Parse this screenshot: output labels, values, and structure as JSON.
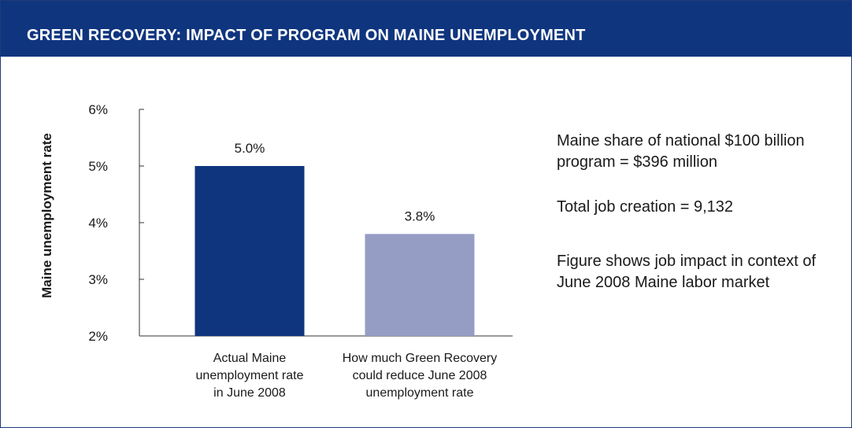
{
  "header": {
    "title": "GREEN RECOVERY: IMPACT OF PROGRAM ON MAINE UNEMPLOYMENT"
  },
  "colors": {
    "header_bg": "#0f357e",
    "bar_actual": "#0f357e",
    "bar_recovery": "#959dc4",
    "frame": "#1f3a7a"
  },
  "chart_data": {
    "type": "bar",
    "title": "",
    "ylabel": "Maine unemployment rate",
    "xlabel": "",
    "ylim": [
      2,
      6
    ],
    "yticks": [
      "2%",
      "3%",
      "4%",
      "5%",
      "6%"
    ],
    "ytick_values": [
      2,
      3,
      4,
      5,
      6
    ],
    "categories": [
      [
        "Actual Maine",
        "unemployment rate",
        "in June 2008"
      ],
      [
        "How much Green Recovery",
        "could reduce June 2008",
        "unemployment rate"
      ]
    ],
    "values": [
      5.0,
      3.8
    ],
    "value_labels": [
      "5.0%",
      "3.8%"
    ],
    "grid": false
  },
  "notes": {
    "share": "Maine share of national $100 billion program = $396 million",
    "jobs": "Total job creation = 9,132",
    "context": "Figure shows job impact in context of June 2008 Maine labor market"
  }
}
